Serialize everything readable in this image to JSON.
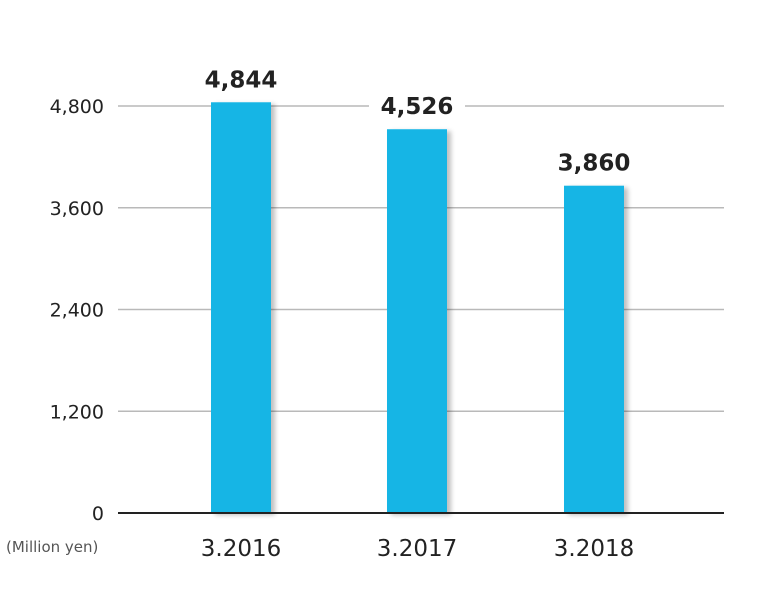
{
  "chart_data": {
    "type": "bar",
    "categories": [
      "3.2016",
      "3.2017",
      "3.2018"
    ],
    "values": [
      4844,
      4526,
      3860
    ],
    "value_labels": [
      "4,844",
      "4,526",
      "3,860"
    ],
    "ylim": [
      0,
      4800
    ],
    "y_ticks": [
      0,
      1200,
      2400,
      3600,
      4800
    ],
    "y_tick_labels": [
      "0",
      "1,200",
      "2,400",
      "3,600",
      "4,800"
    ],
    "unit_label": "(Million yen)",
    "grid": true,
    "bar_color": "#12b5e5",
    "grid_color": "#b9b9b9",
    "axis_color": "#222222"
  }
}
